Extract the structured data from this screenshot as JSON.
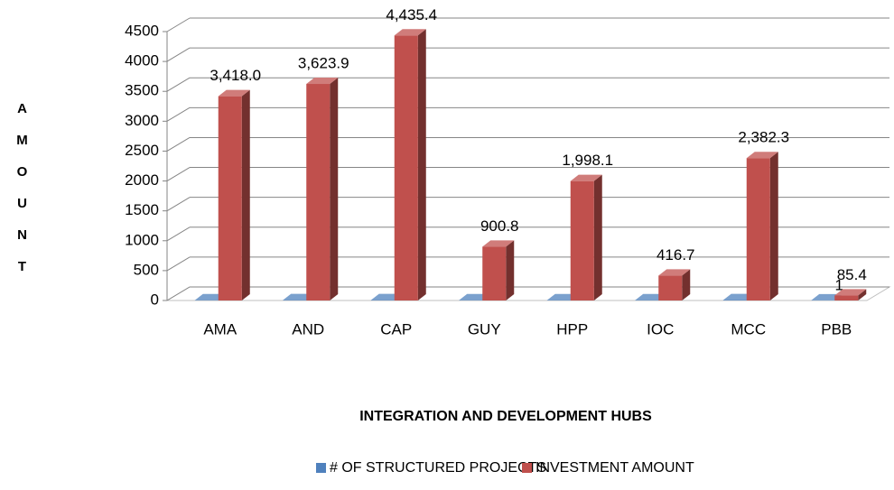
{
  "chart_data": {
    "type": "bar3d",
    "y_label": "AMOUNT",
    "x_label": "INTEGRATION AND DEVELOPMENT HUBS",
    "categories": [
      "AMA",
      "AND",
      "CAP",
      "GUY",
      "HPP",
      "IOC",
      "MCC",
      "PBB"
    ],
    "series": [
      {
        "name": "# OF STRUCTURED PROJECTS",
        "color": "#4f81bd",
        "values": [
          3,
          5,
          5,
          3,
          4,
          4,
          6,
          1
        ]
      },
      {
        "name": "INVESTMENT AMOUNT",
        "color": "#c0504d",
        "values": [
          3418.0,
          3623.9,
          4435.4,
          900.8,
          1998.1,
          416.7,
          2382.3,
          85.4
        ],
        "value_labels": [
          "3,418.0",
          "3,623.9",
          "4,435.4",
          "900.8",
          "1,998.1",
          "416.7",
          "2,382.3",
          "85.4"
        ]
      }
    ],
    "ylim": [
      0,
      4500
    ],
    "yticks": [
      0,
      500,
      1000,
      1500,
      2000,
      2500,
      3000,
      3500,
      4000,
      4500
    ],
    "grid": true,
    "legend": "bottom"
  }
}
